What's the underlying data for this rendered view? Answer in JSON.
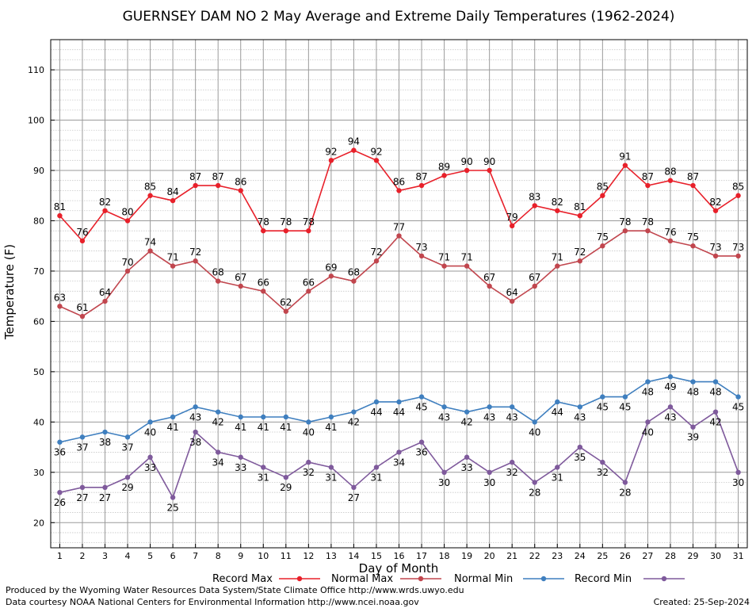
{
  "chart_data": {
    "type": "line",
    "title": "GUERNSEY DAM NO 2 May Average and Extreme Daily Temperatures (1962-2024)",
    "xlabel": "Day of Month",
    "ylabel": "Temperature (F)",
    "x": [
      1,
      2,
      3,
      4,
      5,
      6,
      7,
      8,
      9,
      10,
      11,
      12,
      13,
      14,
      15,
      16,
      17,
      18,
      19,
      20,
      21,
      22,
      23,
      24,
      25,
      26,
      27,
      28,
      29,
      30,
      31
    ],
    "xlim": [
      0.6,
      31.4
    ],
    "ylim": [
      15,
      116
    ],
    "yticks": [
      20,
      30,
      40,
      50,
      60,
      70,
      80,
      90,
      100,
      110
    ],
    "grid": true,
    "legend_position": "bottom",
    "series": [
      {
        "name": "Record Max",
        "color": "#e8202a",
        "values": [
          81,
          76,
          82,
          80,
          85,
          84,
          87,
          87,
          86,
          78,
          78,
          78,
          92,
          94,
          92,
          86,
          87,
          89,
          90,
          90,
          79,
          83,
          82,
          81,
          85,
          91,
          87,
          88,
          87,
          82,
          85
        ]
      },
      {
        "name": "Normal Max",
        "color": "#c1464e",
        "values": [
          63,
          61,
          64,
          70,
          74,
          71,
          72,
          68,
          67,
          66,
          62,
          66,
          69,
          68,
          72,
          77,
          73,
          71,
          71,
          67,
          64,
          67,
          71,
          72,
          75,
          78,
          78,
          76,
          75,
          73,
          73
        ]
      },
      {
        "name": "Normal Min",
        "color": "#3f7fbf",
        "values": [
          36,
          37,
          38,
          37,
          40,
          41,
          43,
          42,
          41,
          41,
          41,
          40,
          41,
          42,
          44,
          44,
          45,
          43,
          42,
          43,
          43,
          40,
          44,
          43,
          45,
          45,
          48,
          49,
          48,
          48,
          45
        ]
      },
      {
        "name": "Record Min",
        "color": "#7f5a9c",
        "values": [
          26,
          27,
          27,
          29,
          33,
          25,
          38,
          34,
          33,
          31,
          29,
          32,
          31,
          27,
          31,
          34,
          36,
          30,
          33,
          30,
          32,
          28,
          31,
          35,
          32,
          28,
          40,
          43,
          39,
          42,
          30
        ]
      }
    ]
  },
  "footer": {
    "credit": "Produced by the Wyoming Water Resources Data System/State Climate Office http://www.wrds.uwyo.edu",
    "source": "Data courtesy NOAA National Centers for Environmental Information http://www.ncei.noaa.gov",
    "created": "Created:  25-Sep-2024"
  }
}
